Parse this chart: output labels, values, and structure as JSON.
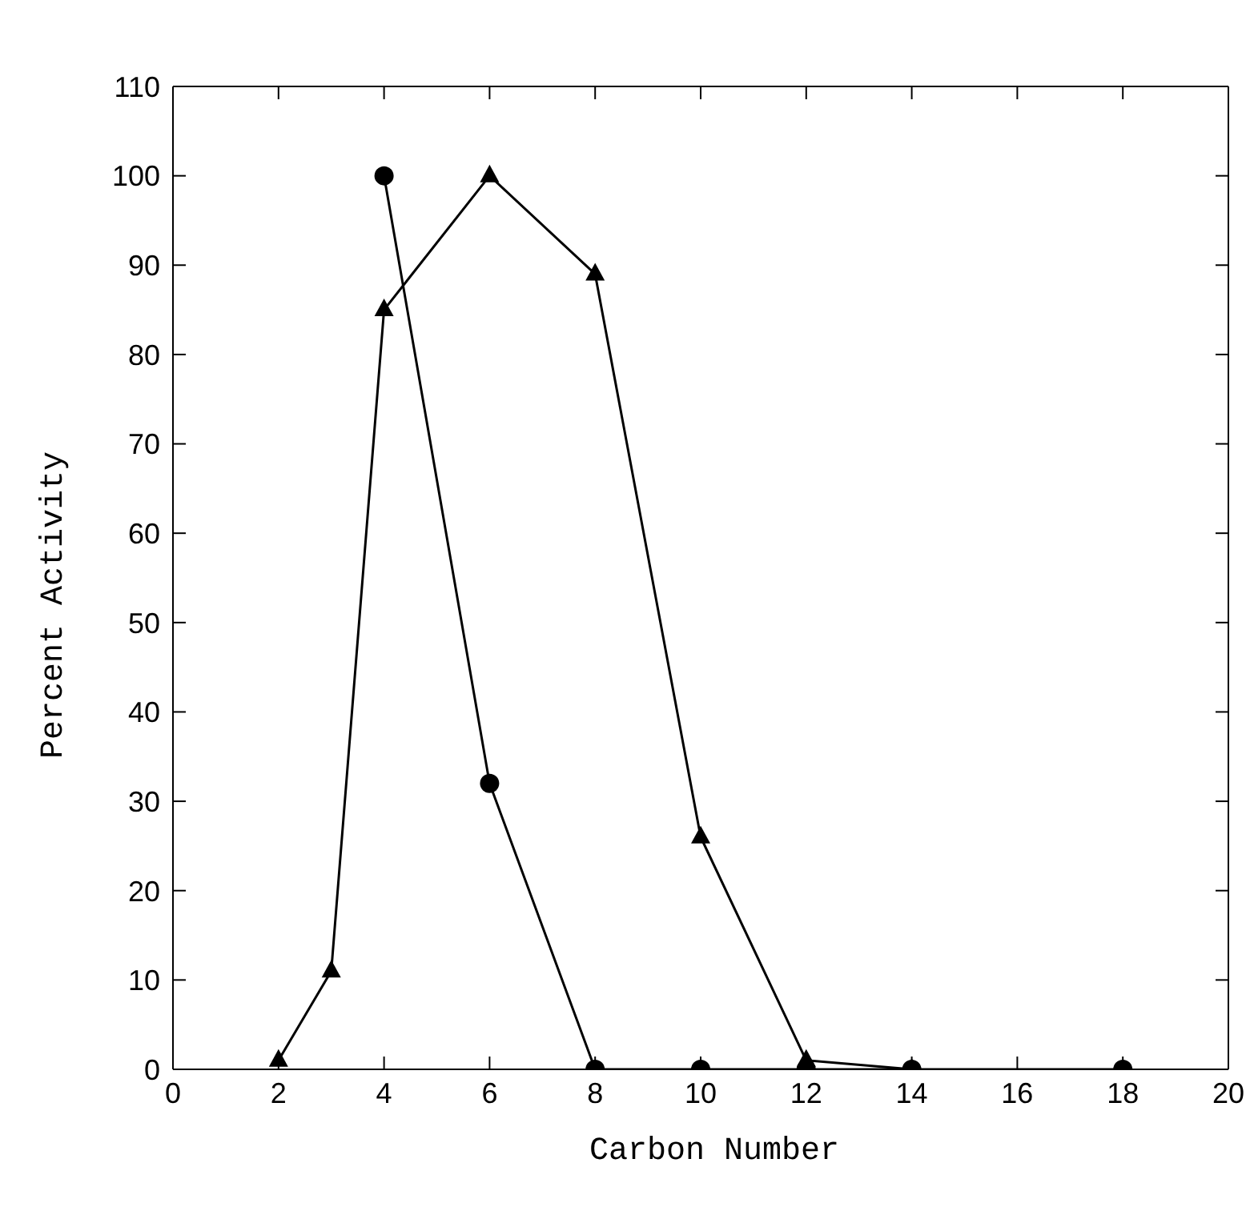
{
  "chart_data": {
    "type": "line",
    "xlabel": "Carbon Number",
    "ylabel": "Percent Activity",
    "xlim": [
      0,
      20
    ],
    "xticks": [
      0,
      2,
      4,
      6,
      8,
      10,
      12,
      14,
      16,
      18,
      20
    ],
    "ylim": [
      0,
      110
    ],
    "yticks": [
      0,
      10,
      20,
      30,
      40,
      50,
      60,
      70,
      80,
      90,
      100,
      110
    ],
    "grid": false,
    "legend": false,
    "line_style": "solid",
    "series": [
      {
        "color": "#000000",
        "marker": "triangle",
        "x": [
          2,
          3,
          4,
          6,
          8,
          10,
          12,
          14
        ],
        "values": [
          1,
          11,
          85,
          100,
          89,
          26,
          1,
          0
        ]
      },
      {
        "color": "#000000",
        "marker": "circle",
        "x": [
          4,
          6,
          8,
          10,
          12,
          14,
          18
        ],
        "values": [
          100,
          32,
          0,
          0,
          0,
          0,
          0
        ]
      }
    ]
  }
}
